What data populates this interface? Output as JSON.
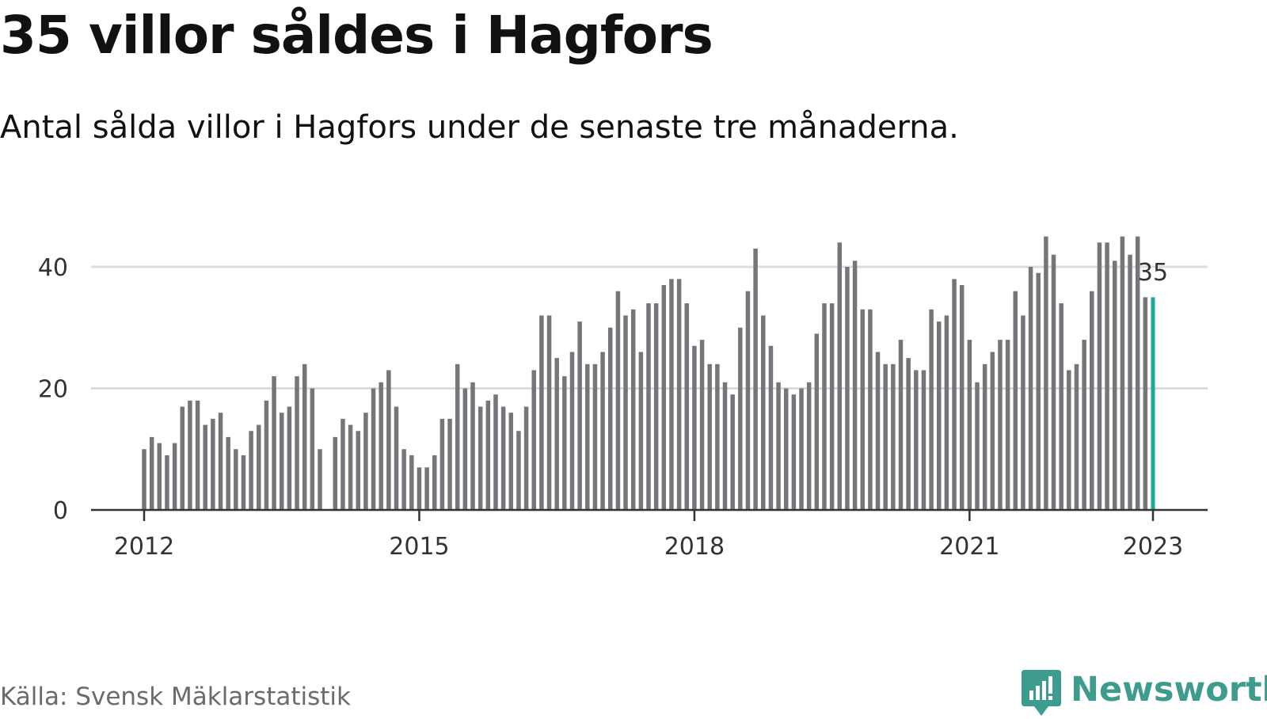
{
  "title": "35 villor såldes i Hagfors",
  "subtitle": "Antal sålda villor i Hagfors under de senaste tre månaderna.",
  "source": "Källa: Svensk Mäklarstatistik",
  "brand": {
    "name": "Newsworthy",
    "icon": "newsworthy-logo-icon",
    "color": "#3d9c8d"
  },
  "colors": {
    "bar": "#76767a",
    "highlight": "#1aa99a",
    "grid": "#dcdcdc",
    "axis": "#333333"
  },
  "chart_data": {
    "type": "bar",
    "x_start": "2012-01",
    "x_interval": "month",
    "x_ticks": [
      "2012",
      "2015",
      "2018",
      "2021",
      "2023"
    ],
    "y_ticks": [
      0,
      20,
      40
    ],
    "ylim": [
      0,
      46
    ],
    "grid": true,
    "highlight_label": "35",
    "values": [
      10,
      12,
      11,
      9,
      11,
      17,
      18,
      18,
      14,
      15,
      16,
      12,
      10,
      9,
      13,
      14,
      18,
      22,
      16,
      17,
      22,
      24,
      20,
      10,
      null,
      12,
      15,
      14,
      13,
      16,
      20,
      21,
      23,
      17,
      10,
      9,
      7,
      7,
      9,
      15,
      15,
      24,
      20,
      21,
      17,
      18,
      19,
      17,
      16,
      13,
      17,
      23,
      32,
      32,
      25,
      22,
      26,
      31,
      24,
      24,
      26,
      30,
      36,
      32,
      33,
      26,
      34,
      34,
      37,
      38,
      38,
      34,
      27,
      28,
      24,
      24,
      21,
      19,
      30,
      36,
      43,
      32,
      27,
      21,
      20,
      19,
      20,
      21,
      29,
      34,
      34,
      44,
      40,
      41,
      33,
      33,
      26,
      24,
      24,
      28,
      25,
      23,
      23,
      33,
      31,
      32,
      38,
      37,
      28,
      21,
      24,
      26,
      28,
      28,
      36,
      32,
      40,
      39,
      45,
      42,
      34,
      23,
      24,
      28,
      36,
      44,
      44,
      41,
      45,
      42,
      45,
      35,
      35
    ]
  }
}
